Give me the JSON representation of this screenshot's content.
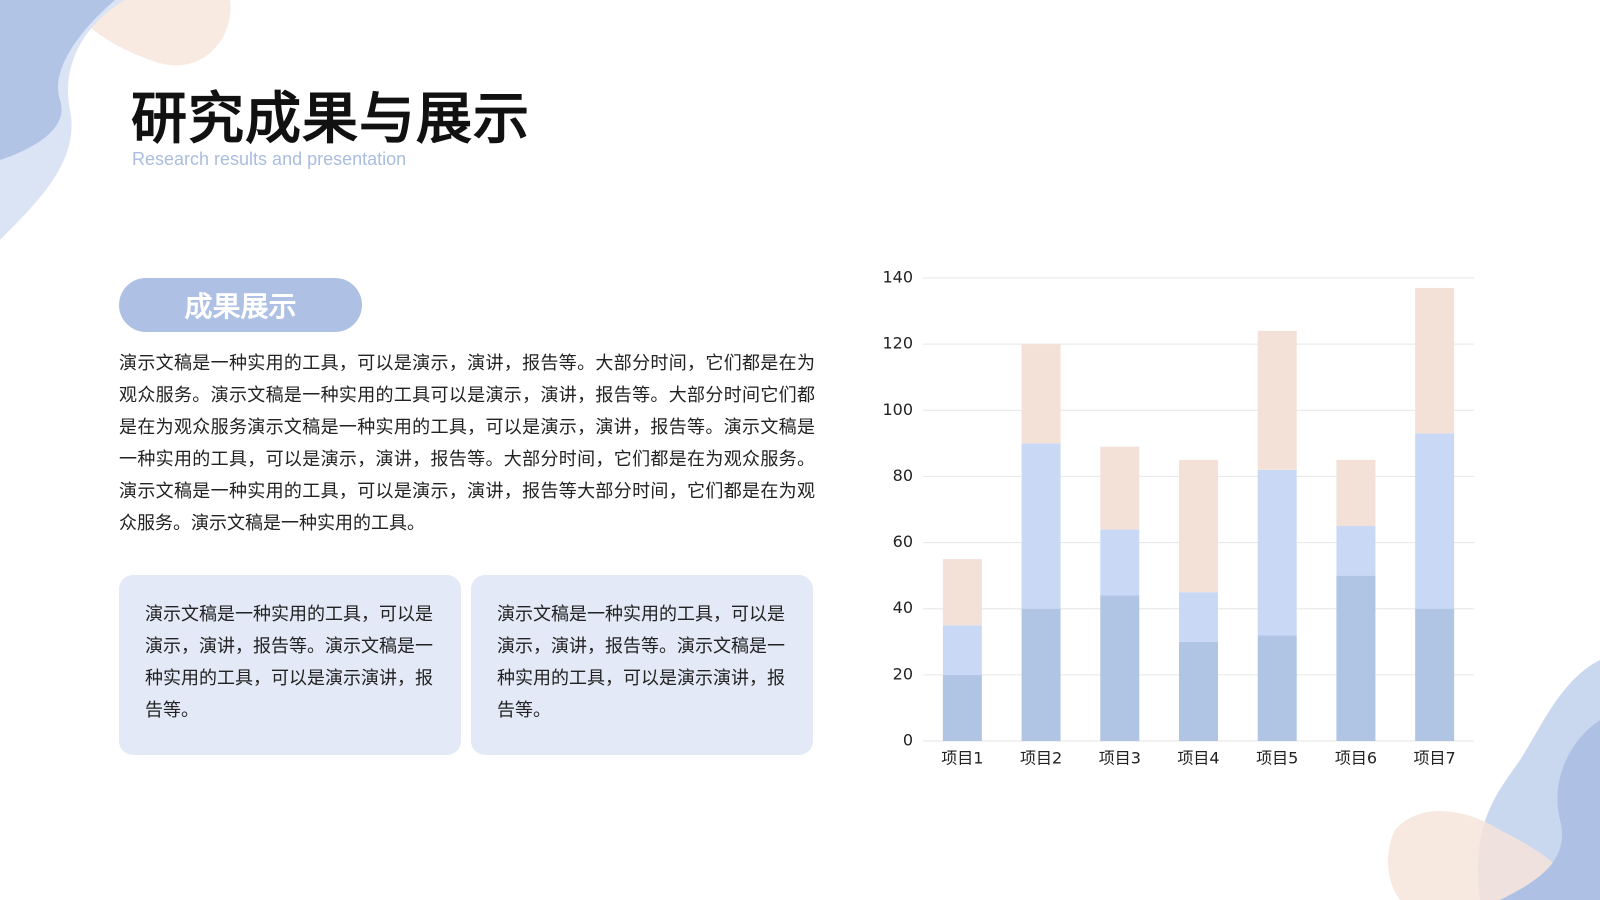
{
  "header": {
    "title": "研究成果与展示",
    "subtitle": "Research results and presentation"
  },
  "section": {
    "label": "成果展示",
    "paragraph": "演示文稿是一种实用的工具，可以是演示，演讲，报告等。大部分时间，它们都是在为观众服务。演示文稿是一种实用的工具可以是演示，演讲，报告等。大部分时间它们都是在为观众服务演示文稿是一种实用的工具，可以是演示，演讲，报告等。演示文稿是一种实用的工具，可以是演示，演讲，报告等。大部分时间，它们都是在为观众服务。演示文稿是一种实用的工具，可以是演示，演讲，报告等大部分时间，它们都是在为观众服务。演示文稿是一种实用的工具。"
  },
  "cards": [
    "演示文稿是一种实用的工具，可以是演示，演讲，报告等。演示文稿是一种实用的工具，可以是演示演讲，报告等。",
    "演示文稿是一种实用的工具，可以是演示，演讲，报告等。演示文稿是一种实用的工具，可以是演示演讲，报告等。"
  ],
  "chart_data": {
    "type": "stacked_bar",
    "categories": [
      "项目1",
      "项目2",
      "项目3",
      "项目4",
      "项目5",
      "项目6",
      "项目7"
    ],
    "series": [
      {
        "color": "#b0c4e4",
        "values": [
          20,
          40,
          44,
          30,
          32,
          50,
          40
        ]
      },
      {
        "color": "#c9d9f5",
        "values": [
          15,
          50,
          20,
          15,
          50,
          15,
          53
        ]
      },
      {
        "color": "#f3e1d8",
        "values": [
          20,
          30,
          25,
          40,
          42,
          20,
          44
        ]
      }
    ],
    "ylim": [
      0,
      140
    ],
    "yticks": [
      0,
      20,
      40,
      60,
      80,
      100,
      120,
      140
    ],
    "grid": true
  }
}
